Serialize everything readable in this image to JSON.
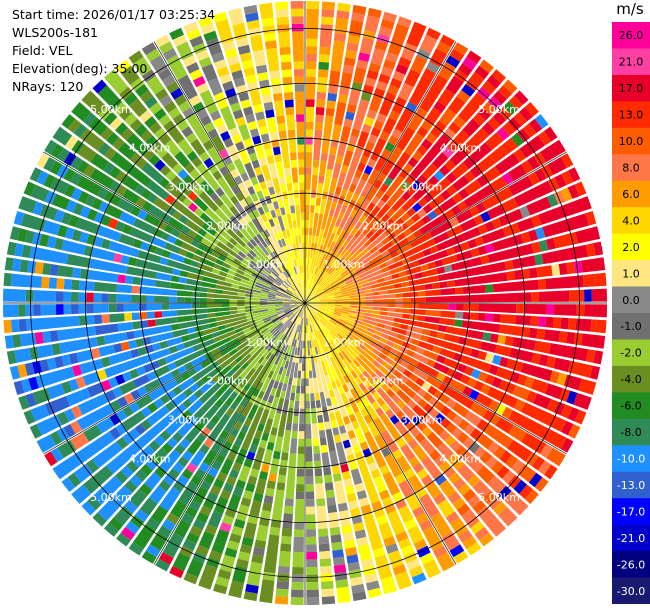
{
  "info": {
    "start_time": "Start time: 2026/01/17 03:25:34",
    "instrument": "WLS200s-181",
    "field": "Field: VEL",
    "elevation": "Elevation(deg): 35.00",
    "nrays": "NRays: 120"
  },
  "chart_data": {
    "type": "heatmap",
    "projection": "polar-ppi",
    "field": "VEL",
    "units": "m/s",
    "n_rays": 120,
    "elevation_deg": 35.0,
    "max_range_km": 5.5,
    "range_rings_km": [
      1,
      2,
      3,
      4,
      5
    ],
    "ring_labels": [
      "1.00km",
      "2.00km",
      "3.00km",
      "4.00km",
      "5.00km"
    ],
    "colorbar": {
      "title": "m/s",
      "ticks": [
        "26.0",
        "21.0",
        "17.0",
        "13.0",
        "10.0",
        "8.0",
        "6.0",
        "4.0",
        "2.0",
        "1.0",
        "0.0",
        "-1.0",
        "-2.0",
        "-4.0",
        "-6.0",
        "-8.0",
        "-10.0",
        "-13.0",
        "-17.0",
        "-21.0",
        "-26.0",
        "-30.0"
      ],
      "colors": [
        "#ff0099",
        "#ff3fa4",
        "#e8002a",
        "#ff2a00",
        "#ff5c00",
        "#ff7648",
        "#ff9c00",
        "#ffd700",
        "#ffff00",
        "#ffe680",
        "#888888",
        "#707070",
        "#9acd32",
        "#6b8e23",
        "#228b22",
        "#2e8b57",
        "#1e90ff",
        "#3060d0",
        "#0000ff",
        "#0000cd",
        "#000080",
        "#191970"
      ]
    },
    "pattern_summary": "Approaching velocities (negative, blue/green) in the west and north-northwest, receding velocities (positive, red/orange) in the east and south-east, near-zero (yellow/gray) close to the center."
  }
}
